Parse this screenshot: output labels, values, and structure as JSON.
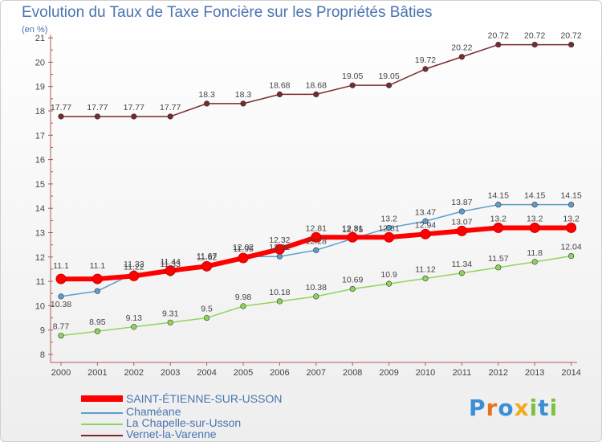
{
  "header": {
    "title": "Evolution du Taux de Taxe Foncière sur les Propriétés Bâties",
    "subtitle": "(en %)"
  },
  "logo": {
    "text": "Proxiti",
    "letters": [
      "P",
      "r",
      "o",
      "x",
      "i",
      "t",
      "i"
    ],
    "colors": [
      "#3a8fd6",
      "#e8731e",
      "#3a8fd6",
      "#f2a91b",
      "#7cc242",
      "#3a8fd6",
      "#7cc242"
    ]
  },
  "chart_data": {
    "type": "line",
    "title": "Evolution du Taux de Taxe Foncière sur les Propriétés Bâties",
    "ylabel": "(en %)",
    "xlabel": "",
    "ylim": [
      8,
      21
    ],
    "yticks": [
      "8",
      "9",
      "10",
      "11",
      "12",
      "13",
      "14",
      "15",
      "16",
      "17",
      "18",
      "19",
      "20",
      "21"
    ],
    "categories": [
      "2000",
      "2001",
      "2002",
      "2003",
      "2004",
      "2005",
      "2006",
      "2007",
      "2008",
      "2009",
      "2010",
      "2011",
      "2012",
      "2013",
      "2014"
    ],
    "grid": false,
    "legend_position": "bottom-left",
    "series": [
      {
        "name": "SAINT-ÉTIENNE-SUR-USSON",
        "color": "#ff0000",
        "bold": true,
        "values": [
          11.1,
          11.1,
          11.22,
          11.44,
          11.62,
          11.96,
          12.32,
          12.81,
          12.81,
          12.81,
          12.94,
          13.07,
          13.2,
          13.2,
          13.2
        ],
        "labels": [
          "",
          "",
          "11.22",
          "11.44",
          "11.62",
          "11.96",
          "12.32",
          "12.81",
          "12.81",
          "12.81",
          "12.94",
          "13.07",
          "13.2",
          "13.2",
          "13.2"
        ]
      },
      {
        "name": "Chaméane",
        "color": "#5a9fd0",
        "bold": false,
        "values": [
          10.38,
          10.6,
          11.33,
          11.33,
          11.67,
          12.02,
          12.02,
          12.28,
          12.75,
          13.2,
          13.47,
          13.87,
          14.15,
          14.15,
          14.15
        ],
        "labels": [
          "10.38",
          "",
          "11.33",
          "11.33",
          "11.67",
          "12.02",
          "12.02",
          "12.28",
          "12.75",
          "13.2",
          "13.47",
          "13.87",
          "14.15",
          "14.15",
          "14.15"
        ]
      },
      {
        "name": "La Chapelle-sur-Usson",
        "color": "#8ed65a",
        "bold": false,
        "values": [
          8.77,
          8.95,
          9.13,
          9.31,
          9.5,
          9.98,
          10.18,
          10.38,
          10.69,
          10.9,
          11.12,
          11.34,
          11.57,
          11.8,
          12.04
        ],
        "labels": [
          "8.77",
          "8.95",
          "9.13",
          "9.31",
          "9.5",
          "9.98",
          "10.18",
          "10.38",
          "10.69",
          "10.9",
          "11.12",
          "11.34",
          "11.57",
          "11.8",
          "12.04"
        ]
      },
      {
        "name": "Vernet-la-Varenne",
        "color": "#7a2a2a",
        "bold": false,
        "values": [
          17.77,
          17.77,
          17.77,
          17.77,
          18.3,
          18.3,
          18.68,
          18.68,
          19.05,
          19.05,
          19.72,
          20.22,
          20.72,
          20.72,
          20.72
        ],
        "labels": [
          "17.77",
          "17.77",
          "17.77",
          "17.77",
          "18.3",
          "18.3",
          "18.68",
          "18.68",
          "19.05",
          "19.05",
          "19.72",
          "20.22",
          "20.72",
          "20.72",
          "20.72"
        ]
      }
    ],
    "extra_labels": [
      "11.1",
      "11.1"
    ]
  }
}
